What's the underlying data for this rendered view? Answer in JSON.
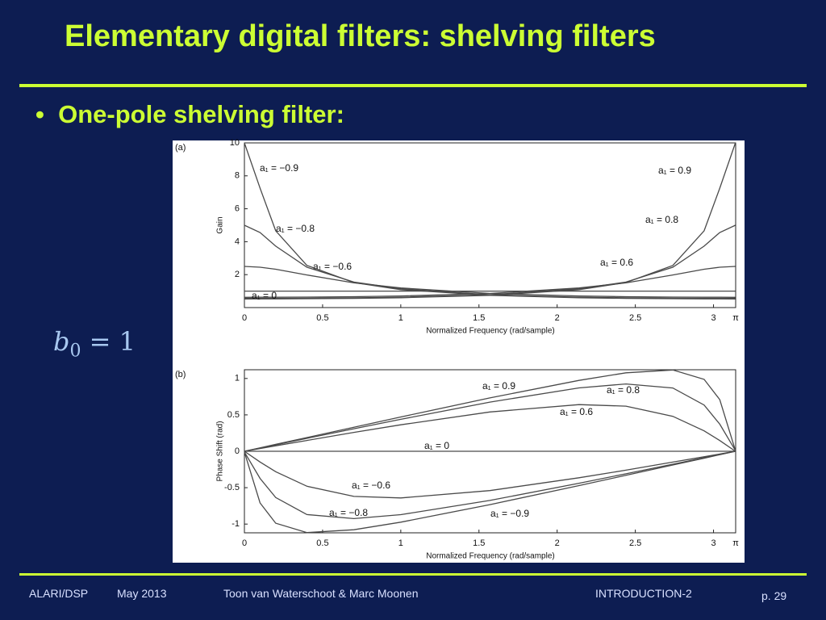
{
  "slide": {
    "title": "Elementary digital filters: shelving filters",
    "bullet": "One-pole shelving filter:",
    "equation": {
      "lhs": "b",
      "subscript": "0",
      "rhs": "= 1"
    },
    "footer": {
      "course": "ALARI/DSP",
      "date": "May 2013",
      "authors": "Toon van Waterschoot & Marc Moonen",
      "section": "INTRODUCTION-2",
      "page": "p. 29"
    }
  },
  "chart_data": [
    {
      "type": "line",
      "panel_label": "(a)",
      "ylabel": "Gain",
      "xlabel": "Normalized Frequency (rad/sample)",
      "x": [
        0,
        0.1,
        0.2,
        0.4,
        0.7,
        1,
        1.57,
        2.14,
        2.44,
        2.74,
        2.94,
        3.04,
        3.14
      ],
      "xlim": [
        0,
        3.1416
      ],
      "ylim": [
        0,
        10
      ],
      "xticks": [
        0,
        0.5,
        1,
        1.5,
        2,
        2.5,
        3,
        {
          "value": 3.1416,
          "label": "π"
        }
      ],
      "yticks": [
        2,
        4,
        6,
        8,
        10
      ],
      "series": [
        {
          "name": "a₁ = 0.9",
          "color": "#4a4a4a",
          "values": [
            0.526,
            0.527,
            0.529,
            0.537,
            0.56,
            0.6,
            0.743,
            1.09,
            1.52,
            2.56,
            4.66,
            7.25,
            10
          ]
        },
        {
          "name": "a₁ = 0.8",
          "color": "#4a4a4a",
          "values": [
            0.556,
            0.556,
            0.558,
            0.567,
            0.591,
            0.632,
            0.781,
            1.14,
            1.55,
            2.45,
            3.73,
            4.56,
            5
          ]
        },
        {
          "name": "a₁ = 0.6",
          "color": "#4a4a4a",
          "values": [
            0.625,
            0.626,
            0.628,
            0.637,
            0.663,
            0.706,
            0.857,
            1.19,
            1.5,
            1.98,
            2.33,
            2.45,
            2.5
          ]
        },
        {
          "name": "a₁ = 0",
          "color": "#4a4a4a",
          "values": [
            1,
            1,
            1,
            1,
            1,
            1,
            1,
            1,
            1,
            1,
            1,
            1,
            1
          ]
        },
        {
          "name": "a₁ = −0.6",
          "color": "#4a4a4a",
          "values": [
            2.5,
            2.45,
            2.33,
            1.98,
            1.5,
            1.19,
            0.857,
            0.706,
            0.663,
            0.637,
            0.628,
            0.626,
            0.625
          ]
        },
        {
          "name": "a₁ = −0.8",
          "color": "#4a4a4a",
          "values": [
            5,
            4.56,
            3.73,
            2.45,
            1.55,
            1.14,
            0.781,
            0.632,
            0.591,
            0.567,
            0.558,
            0.556,
            0.556
          ]
        },
        {
          "name": "a₁ = −0.9",
          "color": "#4a4a4a",
          "values": [
            10,
            7.25,
            4.66,
            2.56,
            1.52,
            1.09,
            0.743,
            0.6,
            0.56,
            0.537,
            0.529,
            0.527,
            0.526
          ]
        }
      ]
    },
    {
      "type": "line",
      "panel_label": "(b)",
      "ylabel": "Phase Shift (rad)",
      "xlabel": "Normalized Frequency (rad/sample)",
      "x": [
        0,
        0.1,
        0.2,
        0.4,
        0.7,
        1,
        1.57,
        2.14,
        2.44,
        2.74,
        2.94,
        3.04,
        3.14
      ],
      "xlim": [
        0,
        3.1416
      ],
      "ylim": [
        -1.12,
        1.12
      ],
      "xticks": [
        0,
        0.5,
        1,
        1.5,
        2,
        2.5,
        3,
        {
          "value": 3.1416,
          "label": "π"
        }
      ],
      "yticks": [
        -1,
        -0.5,
        0,
        0.5,
        1
      ],
      "series": [
        {
          "name": "a₁ = 0.9",
          "color": "#4a4a4a",
          "values": [
            0,
            0.047,
            0.095,
            0.189,
            0.331,
            0.471,
            0.733,
            0.974,
            1.078,
            1.117,
            0.988,
            0.71,
            0.01
          ]
        },
        {
          "name": "a₁ = 0.8",
          "color": "#4a4a4a",
          "values": [
            0,
            0.044,
            0.089,
            0.177,
            0.309,
            0.439,
            0.675,
            0.87,
            0.925,
            0.869,
            0.635,
            0.373,
            0.01
          ]
        },
        {
          "name": "a₁ = 0.6",
          "color": "#4a4a4a",
          "values": [
            0,
            0.038,
            0.075,
            0.149,
            0.259,
            0.364,
            0.54,
            0.641,
            0.62,
            0.48,
            0.281,
            0.147,
            0
          ]
        },
        {
          "name": "a₁ = 0",
          "color": "#4a4a4a",
          "values": [
            0,
            0,
            0,
            0,
            0,
            0,
            0,
            0,
            0,
            0,
            0,
            0,
            0
          ]
        },
        {
          "name": "a₁ = −0.6",
          "color": "#4a4a4a",
          "values": [
            0,
            -0.147,
            -0.281,
            -0.48,
            -0.62,
            -0.641,
            -0.54,
            -0.364,
            -0.259,
            -0.149,
            -0.075,
            -0.038,
            0
          ]
        },
        {
          "name": "a₁ = −0.8",
          "color": "#4a4a4a",
          "values": [
            -0.01,
            -0.373,
            -0.635,
            -0.869,
            -0.925,
            -0.87,
            -0.675,
            -0.439,
            -0.309,
            -0.177,
            -0.089,
            -0.044,
            0
          ]
        },
        {
          "name": "a₁ = −0.9",
          "color": "#4a4a4a",
          "values": [
            -0.01,
            -0.71,
            -0.988,
            -1.117,
            -1.078,
            -0.974,
            -0.733,
            -0.471,
            -0.331,
            -0.189,
            -0.095,
            -0.047,
            0
          ]
        }
      ]
    }
  ]
}
